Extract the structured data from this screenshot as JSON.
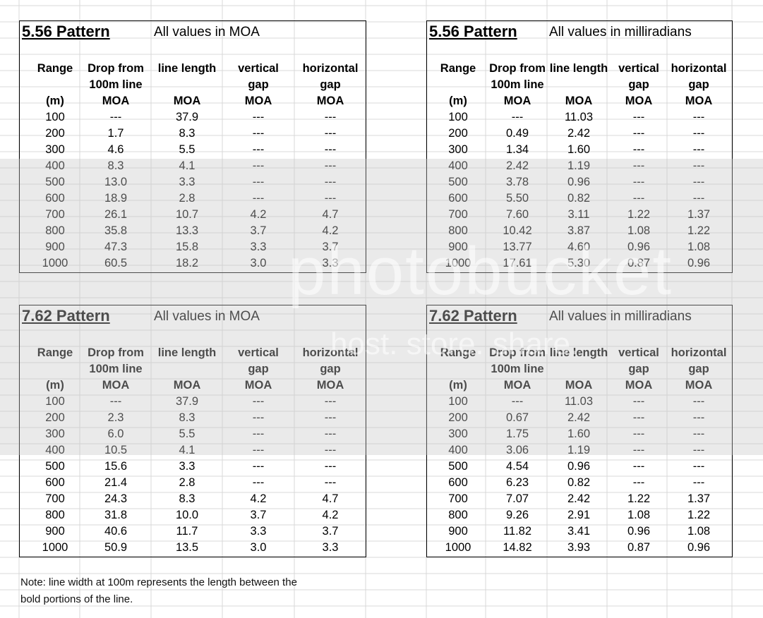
{
  "tables": [
    {
      "title": "5.56 Pattern",
      "subtitle": "All values in MOA",
      "headers": [
        [
          "Range",
          "",
          "(m)"
        ],
        [
          "Drop from",
          "100m line",
          "MOA"
        ],
        [
          "line length",
          "",
          "MOA"
        ],
        [
          "vertical",
          "gap",
          "MOA"
        ],
        [
          "horizontal",
          "gap",
          "MOA"
        ]
      ],
      "rows": [
        [
          "100",
          "---",
          "37.9",
          "---",
          "---"
        ],
        [
          "200",
          "1.7",
          "8.3",
          "---",
          "---"
        ],
        [
          "300",
          "4.6",
          "5.5",
          "---",
          "---"
        ],
        [
          "400",
          "8.3",
          "4.1",
          "---",
          "---"
        ],
        [
          "500",
          "13.0",
          "3.3",
          "---",
          "---"
        ],
        [
          "600",
          "18.9",
          "2.8",
          "---",
          "---"
        ],
        [
          "700",
          "26.1",
          "10.7",
          "4.2",
          "4.7"
        ],
        [
          "800",
          "35.8",
          "13.3",
          "3.7",
          "4.2"
        ],
        [
          "900",
          "47.3",
          "15.8",
          "3.3",
          "3.7"
        ],
        [
          "1000",
          "60.5",
          "18.2",
          "3.0",
          "3.3"
        ]
      ]
    },
    {
      "title": "5.56 Pattern",
      "subtitle": "All values in milliradians",
      "headers": [
        [
          "Range",
          "",
          "(m)"
        ],
        [
          "Drop from",
          "100m line",
          "MOA"
        ],
        [
          "line length",
          "",
          "MOA"
        ],
        [
          "vertical",
          "gap",
          "MOA"
        ],
        [
          "horizontal",
          "gap",
          "MOA"
        ]
      ],
      "rows": [
        [
          "100",
          "---",
          "11.03",
          "---",
          "---"
        ],
        [
          "200",
          "0.49",
          "2.42",
          "---",
          "---"
        ],
        [
          "300",
          "1.34",
          "1.60",
          "---",
          "---"
        ],
        [
          "400",
          "2.42",
          "1.19",
          "---",
          "---"
        ],
        [
          "500",
          "3.78",
          "0.96",
          "---",
          "---"
        ],
        [
          "600",
          "5.50",
          "0.82",
          "---",
          "---"
        ],
        [
          "700",
          "7.60",
          "3.11",
          "1.22",
          "1.37"
        ],
        [
          "800",
          "10.42",
          "3.87",
          "1.08",
          "1.22"
        ],
        [
          "900",
          "13.77",
          "4.60",
          "0.96",
          "1.08"
        ],
        [
          "1000",
          "17.61",
          "5.30",
          "0.87",
          "0.96"
        ]
      ]
    },
    {
      "title": "7.62 Pattern",
      "subtitle": "All values in MOA",
      "headers": [
        [
          "Range",
          "",
          "(m)"
        ],
        [
          "Drop from",
          "100m line",
          "MOA"
        ],
        [
          "line length",
          "",
          "MOA"
        ],
        [
          "vertical",
          "gap",
          "MOA"
        ],
        [
          "horizontal",
          "gap",
          "MOA"
        ]
      ],
      "rows": [
        [
          "100",
          "---",
          "37.9",
          "---",
          "---"
        ],
        [
          "200",
          "2.3",
          "8.3",
          "---",
          "---"
        ],
        [
          "300",
          "6.0",
          "5.5",
          "---",
          "---"
        ],
        [
          "400",
          "10.5",
          "4.1",
          "---",
          "---"
        ],
        [
          "500",
          "15.6",
          "3.3",
          "---",
          "---"
        ],
        [
          "600",
          "21.4",
          "2.8",
          "---",
          "---"
        ],
        [
          "700",
          "24.3",
          "8.3",
          "4.2",
          "4.7"
        ],
        [
          "800",
          "31.8",
          "10.0",
          "3.7",
          "4.2"
        ],
        [
          "900",
          "40.6",
          "11.7",
          "3.3",
          "3.7"
        ],
        [
          "1000",
          "50.9",
          "13.5",
          "3.0",
          "3.3"
        ]
      ]
    },
    {
      "title": "7.62 Pattern",
      "subtitle": "All values in milliradians",
      "headers": [
        [
          "Range",
          "",
          "(m)"
        ],
        [
          "Drop from",
          "100m line",
          "MOA"
        ],
        [
          "line length",
          "",
          "MOA"
        ],
        [
          "vertical",
          "gap",
          "MOA"
        ],
        [
          "horizontal",
          "gap",
          "MOA"
        ]
      ],
      "rows": [
        [
          "100",
          "---",
          "11.03",
          "---",
          "---"
        ],
        [
          "200",
          "0.67",
          "2.42",
          "---",
          "---"
        ],
        [
          "300",
          "1.75",
          "1.60",
          "---",
          "---"
        ],
        [
          "400",
          "3.06",
          "1.19",
          "---",
          "---"
        ],
        [
          "500",
          "4.54",
          "0.96",
          "---",
          "---"
        ],
        [
          "600",
          "6.23",
          "0.82",
          "---",
          "---"
        ],
        [
          "700",
          "7.07",
          "2.42",
          "1.22",
          "1.37"
        ],
        [
          "800",
          "9.26",
          "2.91",
          "1.08",
          "1.22"
        ],
        [
          "900",
          "11.82",
          "3.41",
          "0.96",
          "1.08"
        ],
        [
          "1000",
          "14.82",
          "3.93",
          "0.87",
          "0.96"
        ]
      ]
    }
  ],
  "note": {
    "line1": "Note: line width at 100m represents the length between the",
    "line2": "bold portions of the line."
  },
  "watermark": {
    "brand": "photobucket",
    "tagline": "host. store. share."
  }
}
